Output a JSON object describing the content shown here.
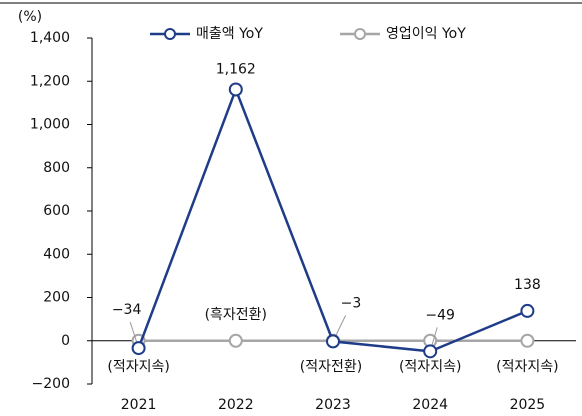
{
  "chart_data": {
    "type": "line",
    "y_unit": "(%)",
    "categories": [
      "2021",
      "2022",
      "2023",
      "2024",
      "2025"
    ],
    "series": [
      {
        "name": "매출액 YoY",
        "color": "#1f3c88",
        "values": [
          -34,
          1162,
          -3,
          -49,
          138
        ],
        "value_labels": [
          "−34",
          "1,162",
          "−3",
          "−49",
          "138"
        ]
      },
      {
        "name": "영업이익 YoY",
        "color": "#a6a6a6",
        "values": [
          0,
          0,
          0,
          0,
          0
        ],
        "value_labels": [
          "(적자지속)",
          "(흑자전환)",
          "(적자전환)",
          "(적자지속)",
          "(적자지속)"
        ]
      }
    ],
    "ylim": [
      -200,
      1400
    ],
    "yticks": [
      {
        "value": -200,
        "label": "−200"
      },
      0,
      200,
      400,
      600,
      800,
      {
        "value": 1000,
        "label": "1,000"
      },
      {
        "value": 1200,
        "label": "1,200"
      },
      {
        "value": 1400,
        "label": "1,400"
      }
    ],
    "legend": "top"
  }
}
